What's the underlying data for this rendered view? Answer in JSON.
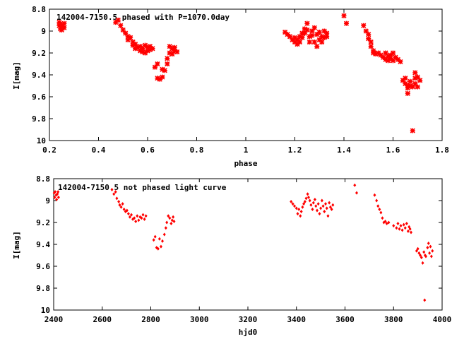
{
  "chart_data": [
    {
      "type": "scatter",
      "title": "142004-7150.5 phased with P=1070.0day",
      "xlabel": "phase",
      "ylabel": "I[mag]",
      "xlim": [
        0.2,
        1.8
      ],
      "ylim": [
        10,
        8.8
      ],
      "y_inverted": true,
      "grid": false,
      "x_ticks": [
        "0.2",
        "0.4",
        "0.6",
        "0.8",
        "1",
        "1.2",
        "1.4",
        "1.6",
        "1.8"
      ],
      "y_ticks": [
        "8.8",
        "9",
        "9.2",
        "9.4",
        "9.6",
        "9.8",
        "10"
      ],
      "marker_color": "#ff0000",
      "series": [
        {
          "points": [
            [
              0.24,
              8.92
            ],
            [
              0.24,
              8.95
            ],
            [
              0.245,
              8.98
            ],
            [
              0.25,
              8.94
            ],
            [
              0.25,
              8.99
            ],
            [
              0.255,
              8.96
            ],
            [
              0.26,
              8.93
            ],
            [
              0.26,
              8.97
            ],
            [
              0.47,
              8.92
            ],
            [
              0.48,
              8.9
            ],
            [
              0.49,
              8.95
            ],
            [
              0.5,
              8.99
            ],
            [
              0.51,
              9.02
            ],
            [
              0.52,
              9.05
            ],
            [
              0.52,
              9.08
            ],
            [
              0.53,
              9.06
            ],
            [
              0.54,
              9.1
            ],
            [
              0.54,
              9.13
            ],
            [
              0.55,
              9.12
            ],
            [
              0.55,
              9.16
            ],
            [
              0.56,
              9.15
            ],
            [
              0.57,
              9.18
            ],
            [
              0.57,
              9.14
            ],
            [
              0.58,
              9.19
            ],
            [
              0.58,
              9.16
            ],
            [
              0.59,
              9.2
            ],
            [
              0.59,
              9.13
            ],
            [
              0.6,
              9.18
            ],
            [
              0.6,
              9.15
            ],
            [
              0.61,
              9.17
            ],
            [
              0.61,
              9.14
            ],
            [
              0.62,
              9.16
            ],
            [
              0.63,
              9.33
            ],
            [
              0.64,
              9.3
            ],
            [
              0.64,
              9.43
            ],
            [
              0.65,
              9.44
            ],
            [
              0.66,
              9.35
            ],
            [
              0.66,
              9.42
            ],
            [
              0.67,
              9.36
            ],
            [
              0.68,
              9.3
            ],
            [
              0.68,
              9.25
            ],
            [
              0.69,
              9.2
            ],
            [
              0.69,
              9.14
            ],
            [
              0.7,
              9.16
            ],
            [
              0.7,
              9.21
            ],
            [
              0.71,
              9.18
            ],
            [
              0.71,
              9.15
            ],
            [
              0.72,
              9.19
            ],
            [
              1.16,
              9.01
            ],
            [
              1.17,
              9.03
            ],
            [
              1.18,
              9.05
            ],
            [
              1.19,
              9.08
            ],
            [
              1.2,
              9.1
            ],
            [
              1.2,
              9.06
            ],
            [
              1.21,
              9.08
            ],
            [
              1.21,
              9.12
            ],
            [
              1.22,
              9.05
            ],
            [
              1.22,
              9.1
            ],
            [
              1.23,
              9.02
            ],
            [
              1.23,
              9.06
            ],
            [
              1.24,
              8.98
            ],
            [
              1.24,
              9.02
            ],
            [
              1.25,
              8.93
            ],
            [
              1.25,
              8.99
            ],
            [
              1.26,
              9.05
            ],
            [
              1.26,
              9.1
            ],
            [
              1.27,
              9.0
            ],
            [
              1.27,
              9.04
            ],
            [
              1.28,
              8.97
            ],
            [
              1.28,
              9.1
            ],
            [
              1.29,
              9.03
            ],
            [
              1.29,
              9.14
            ],
            [
              1.3,
              9.08
            ],
            [
              1.3,
              9.01
            ],
            [
              1.31,
              9.05
            ],
            [
              1.31,
              9.1
            ],
            [
              1.32,
              9.0
            ],
            [
              1.32,
              9.06
            ],
            [
              1.33,
              9.02
            ],
            [
              1.33,
              9.05
            ],
            [
              1.4,
              8.86
            ],
            [
              1.41,
              8.93
            ],
            [
              1.48,
              8.95
            ],
            [
              1.49,
              9.0
            ],
            [
              1.5,
              9.03
            ],
            [
              1.5,
              9.07
            ],
            [
              1.51,
              9.1
            ],
            [
              1.51,
              9.14
            ],
            [
              1.52,
              9.2
            ],
            [
              1.52,
              9.18
            ],
            [
              1.53,
              9.21
            ],
            [
              1.54,
              9.2
            ],
            [
              1.55,
              9.22
            ],
            [
              1.56,
              9.24
            ],
            [
              1.57,
              9.2
            ],
            [
              1.57,
              9.26
            ],
            [
              1.58,
              9.23
            ],
            [
              1.58,
              9.27
            ],
            [
              1.59,
              9.22
            ],
            [
              1.59,
              9.25
            ],
            [
              1.6,
              9.2
            ],
            [
              1.6,
              9.27
            ],
            [
              1.61,
              9.24
            ],
            [
              1.62,
              9.26
            ],
            [
              1.63,
              9.28
            ],
            [
              1.64,
              9.45
            ],
            [
              1.65,
              9.43
            ],
            [
              1.65,
              9.48
            ],
            [
              1.66,
              9.5
            ],
            [
              1.66,
              9.52
            ],
            [
              1.66,
              9.57
            ],
            [
              1.67,
              9.46
            ],
            [
              1.67,
              9.5
            ],
            [
              1.68,
              9.51
            ],
            [
              1.68,
              9.91
            ],
            [
              1.69,
              9.43
            ],
            [
              1.69,
              9.38
            ],
            [
              1.69,
              9.48
            ],
            [
              1.7,
              9.42
            ],
            [
              1.7,
              9.51
            ],
            [
              1.71,
              9.45
            ]
          ]
        }
      ]
    },
    {
      "type": "scatter",
      "title": "142004-7150.5 not phased light curve",
      "xlabel": "hjd0",
      "ylabel": "I[mag]",
      "xlim": [
        2400,
        4000
      ],
      "ylim": [
        10,
        8.8
      ],
      "y_inverted": true,
      "grid": false,
      "x_ticks": [
        "2400",
        "2600",
        "2800",
        "3000",
        "3200",
        "3400",
        "3600",
        "3800",
        "4000"
      ],
      "y_ticks": [
        "8.8",
        "9",
        "9.2",
        "9.4",
        "9.6",
        "9.8",
        "10"
      ],
      "marker_color": "#ff0000",
      "series": [
        {
          "points": [
            [
              2402,
              8.93
            ],
            [
              2404,
              8.97
            ],
            [
              2406,
              8.92
            ],
            [
              2410,
              8.95
            ],
            [
              2412,
              8.99
            ],
            [
              2415,
              8.94
            ],
            [
              2418,
              8.92
            ],
            [
              2420,
              8.97
            ],
            [
              2640,
              8.9
            ],
            [
              2648,
              8.94
            ],
            [
              2655,
              8.92
            ],
            [
              2660,
              8.98
            ],
            [
              2668,
              9.01
            ],
            [
              2672,
              9.04
            ],
            [
              2678,
              9.06
            ],
            [
              2684,
              9.03
            ],
            [
              2690,
              9.08
            ],
            [
              2696,
              9.1
            ],
            [
              2702,
              9.09
            ],
            [
              2708,
              9.12
            ],
            [
              2714,
              9.15
            ],
            [
              2720,
              9.13
            ],
            [
              2726,
              9.17
            ],
            [
              2732,
              9.16
            ],
            [
              2738,
              9.19
            ],
            [
              2744,
              9.14
            ],
            [
              2750,
              9.18
            ],
            [
              2756,
              9.15
            ],
            [
              2762,
              9.16
            ],
            [
              2768,
              9.13
            ],
            [
              2774,
              9.17
            ],
            [
              2780,
              9.14
            ],
            [
              2812,
              9.36
            ],
            [
              2818,
              9.33
            ],
            [
              2824,
              9.43
            ],
            [
              2830,
              9.44
            ],
            [
              2836,
              9.35
            ],
            [
              2842,
              9.42
            ],
            [
              2848,
              9.37
            ],
            [
              2856,
              9.31
            ],
            [
              2862,
              9.25
            ],
            [
              2866,
              9.2
            ],
            [
              2872,
              9.14
            ],
            [
              2878,
              9.16
            ],
            [
              2884,
              9.21
            ],
            [
              2888,
              9.18
            ],
            [
              2892,
              9.15
            ],
            [
              2896,
              9.19
            ],
            [
              3378,
              9.01
            ],
            [
              3385,
              9.03
            ],
            [
              3392,
              9.05
            ],
            [
              3400,
              9.07
            ],
            [
              3405,
              9.12
            ],
            [
              3410,
              9.08
            ],
            [
              3416,
              9.14
            ],
            [
              3420,
              9.1
            ],
            [
              3425,
              9.06
            ],
            [
              3430,
              9.03
            ],
            [
              3435,
              9.01
            ],
            [
              3440,
              8.98
            ],
            [
              3446,
              8.94
            ],
            [
              3450,
              8.97
            ],
            [
              3455,
              9.0
            ],
            [
              3460,
              9.04
            ],
            [
              3466,
              9.08
            ],
            [
              3470,
              9.02
            ],
            [
              3476,
              8.99
            ],
            [
              3480,
              9.05
            ],
            [
              3485,
              9.09
            ],
            [
              3490,
              9.03
            ],
            [
              3495,
              9.12
            ],
            [
              3500,
              9.07
            ],
            [
              3505,
              9.0
            ],
            [
              3510,
              9.05
            ],
            [
              3515,
              9.1
            ],
            [
              3520,
              9.03
            ],
            [
              3525,
              9.07
            ],
            [
              3530,
              9.14
            ],
            [
              3535,
              9.02
            ],
            [
              3540,
              9.06
            ],
            [
              3545,
              9.08
            ],
            [
              3550,
              9.04
            ],
            [
              3640,
              8.86
            ],
            [
              3648,
              8.93
            ],
            [
              3722,
              8.95
            ],
            [
              3730,
              9.0
            ],
            [
              3736,
              9.05
            ],
            [
              3742,
              9.08
            ],
            [
              3748,
              9.11
            ],
            [
              3754,
              9.16
            ],
            [
              3760,
              9.2
            ],
            [
              3766,
              9.19
            ],
            [
              3772,
              9.21
            ],
            [
              3780,
              9.2
            ],
            [
              3800,
              9.23
            ],
            [
              3812,
              9.25
            ],
            [
              3818,
              9.21
            ],
            [
              3824,
              9.26
            ],
            [
              3830,
              9.23
            ],
            [
              3836,
              9.27
            ],
            [
              3842,
              9.22
            ],
            [
              3848,
              9.25
            ],
            [
              3854,
              9.21
            ],
            [
              3860,
              9.28
            ],
            [
              3864,
              9.24
            ],
            [
              3868,
              9.26
            ],
            [
              3872,
              9.29
            ],
            [
              3895,
              9.46
            ],
            [
              3900,
              9.44
            ],
            [
              3905,
              9.48
            ],
            [
              3910,
              9.5
            ],
            [
              3915,
              9.52
            ],
            [
              3920,
              9.57
            ],
            [
              3925,
              9.47
            ],
            [
              3930,
              9.5
            ],
            [
              3933,
              9.51
            ],
            [
              3928,
              9.91
            ],
            [
              3940,
              9.43
            ],
            [
              3944,
              9.39
            ],
            [
              3948,
              9.48
            ],
            [
              3952,
              9.42
            ],
            [
              3956,
              9.51
            ],
            [
              3960,
              9.46
            ]
          ]
        }
      ]
    }
  ]
}
